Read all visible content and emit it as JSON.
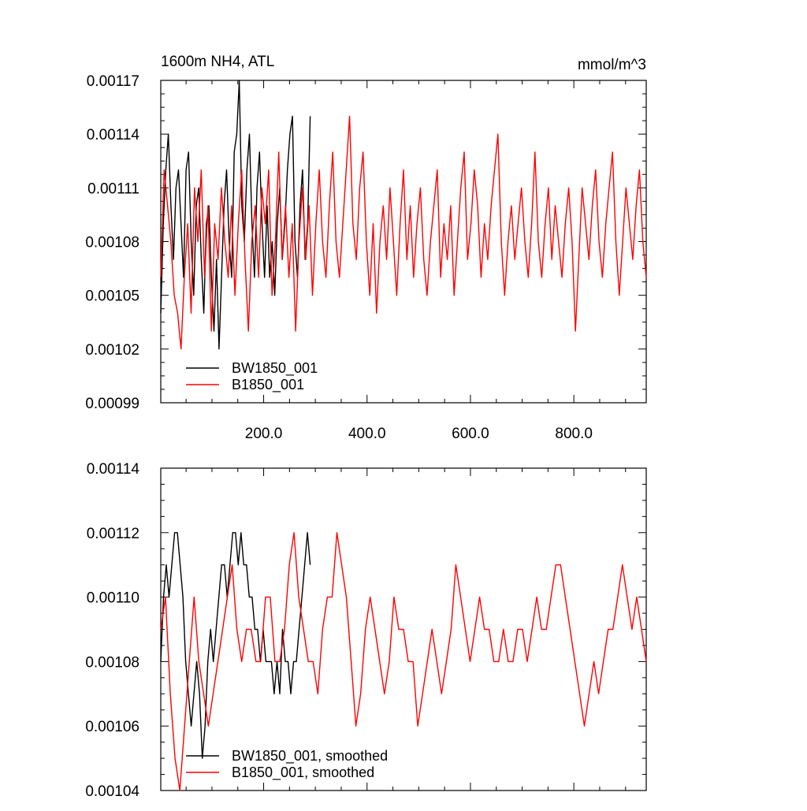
{
  "chart_data": [
    {
      "type": "line",
      "title": "1600m NH4, ATL",
      "units": "mmol/m^3",
      "xlabel": "",
      "ylabel": "",
      "xlim": [
        1,
        940
      ],
      "ylim": [
        0.00099,
        0.00117
      ],
      "x_ticks": [
        "200.0",
        "400.0",
        "600.0",
        "800.0"
      ],
      "x_tick_values": [
        200,
        400,
        600,
        800
      ],
      "y_ticks": [
        "0.00099",
        "0.00102",
        "0.00105",
        "0.00108",
        "0.00111",
        "0.00114",
        "0.00117"
      ],
      "y_tick_values": [
        0.00099,
        0.00102,
        0.00105,
        0.00108,
        0.00111,
        0.00114,
        0.00117
      ],
      "legend_position": "bottom-left",
      "grid": false,
      "series": [
        {
          "name": "BW1850_001",
          "color": "#000000",
          "x_range": [
            1,
            290
          ],
          "values": [
            0.00104,
            0.00109,
            0.00112,
            0.00114,
            0.0011,
            0.00107,
            0.00111,
            0.00112,
            0.00109,
            0.00106,
            0.00112,
            0.00113,
            0.00108,
            0.00105,
            0.0011,
            0.00111,
            0.00107,
            0.00104,
            0.00109,
            0.0011,
            0.00106,
            0.00103,
            0.00107,
            0.00102,
            0.00106,
            0.0011,
            0.00112,
            0.00108,
            0.00106,
            0.00113,
            0.00114,
            0.00117,
            0.0011,
            0.00108,
            0.00112,
            0.00114,
            0.00109,
            0.00106,
            0.00111,
            0.00113,
            0.00109,
            0.00106,
            0.0011,
            0.00106,
            0.00108,
            0.00105,
            0.00109,
            0.00111,
            0.00107,
            0.00109,
            0.00112,
            0.00114,
            0.00115,
            0.00108,
            0.00106,
            0.0011,
            0.00112,
            0.00107,
            0.00109,
            0.00115
          ]
        },
        {
          "name": "B1850_001",
          "color": "#ff0000",
          "x_range": [
            1,
            940
          ],
          "values": [
            0.00106,
            0.00112,
            0.0011,
            0.00108,
            0.00105,
            0.00104,
            0.00102,
            0.00106,
            0.00109,
            0.00104,
            0.00111,
            0.00108,
            0.00112,
            0.00106,
            0.0011,
            0.00103,
            0.00109,
            0.00107,
            0.00111,
            0.00108,
            0.00106,
            0.0011,
            0.00105,
            0.00109,
            0.00112,
            0.00107,
            0.00103,
            0.00108,
            0.0011,
            0.00106,
            0.00111,
            0.00109,
            0.00112,
            0.00105,
            0.00108,
            0.00113,
            0.00107,
            0.0011,
            0.00106,
            0.00109,
            0.00103,
            0.00108,
            0.00111,
            0.00107,
            0.0011,
            0.00105,
            0.00109,
            0.00112,
            0.00108,
            0.00106,
            0.0011,
            0.00113,
            0.00108,
            0.00106,
            0.00109,
            0.00112,
            0.00115,
            0.00109,
            0.00107,
            0.00111,
            0.00113,
            0.00108,
            0.00105,
            0.00109,
            0.00104,
            0.00108,
            0.0011,
            0.00107,
            0.00111,
            0.00108,
            0.00105,
            0.00109,
            0.00112,
            0.00107,
            0.0011,
            0.00106,
            0.00109,
            0.00111,
            0.00107,
            0.00105,
            0.00108,
            0.0011,
            0.00112,
            0.00106,
            0.00109,
            0.00107,
            0.0011,
            0.00105,
            0.00108,
            0.00111,
            0.00113,
            0.00107,
            0.00109,
            0.00112,
            0.0011,
            0.00106,
            0.00109,
            0.00107,
            0.0011,
            0.00112,
            0.00114,
            0.00108,
            0.00105,
            0.00108,
            0.0011,
            0.00107,
            0.00109,
            0.00111,
            0.00108,
            0.00106,
            0.00109,
            0.00113,
            0.00108,
            0.00106,
            0.00109,
            0.00111,
            0.00107,
            0.0011,
            0.00108,
            0.00106,
            0.00109,
            0.00111,
            0.00108,
            0.00103,
            0.00107,
            0.00111,
            0.00109,
            0.00107,
            0.0011,
            0.00112,
            0.00108,
            0.00106,
            0.00109,
            0.00111,
            0.00113,
            0.00108,
            0.00105,
            0.00108,
            0.00111,
            0.00109,
            0.00107,
            0.0011,
            0.00112,
            0.00108,
            0.00106
          ]
        }
      ]
    },
    {
      "type": "line",
      "title": "",
      "xlabel": "",
      "ylabel": "",
      "xlim": [
        1,
        940
      ],
      "ylim": [
        0.00104,
        0.00114
      ],
      "x_tick_values": [
        200,
        400,
        600,
        800
      ],
      "y_ticks": [
        "0.00104",
        "0.00106",
        "0.00108",
        "0.00110",
        "0.00112",
        "0.00114"
      ],
      "y_tick_values": [
        0.00104,
        0.00106,
        0.00108,
        0.0011,
        0.00112,
        0.00114
      ],
      "legend_position": "bottom-left",
      "grid": false,
      "series": [
        {
          "name": "BW1850_001, smoothed",
          "color": "#000000",
          "x_range": [
            1,
            290
          ],
          "values": [
            0.00108,
            0.0011,
            0.00111,
            0.0011,
            0.00111,
            0.00112,
            0.00112,
            0.00111,
            0.0011,
            0.00108,
            0.00107,
            0.00106,
            0.00107,
            0.00108,
            0.00107,
            0.00105,
            0.00106,
            0.00108,
            0.00109,
            0.00108,
            0.00109,
            0.0011,
            0.00111,
            0.00111,
            0.0011,
            0.00111,
            0.00112,
            0.00112,
            0.00111,
            0.00112,
            0.00111,
            0.00111,
            0.0011,
            0.0011,
            0.00109,
            0.00109,
            0.00108,
            0.00109,
            0.00108,
            0.00108,
            0.00108,
            0.00107,
            0.00108,
            0.00107,
            0.00109,
            0.00108,
            0.00108,
            0.00107,
            0.00108,
            0.00108,
            0.00109,
            0.0011,
            0.00111,
            0.00112,
            0.00111
          ]
        },
        {
          "name": "B1850_001, smoothed",
          "color": "#ff0000",
          "x_range": [
            1,
            940
          ],
          "values": [
            0.00109,
            0.0011,
            0.00107,
            0.00105,
            0.00104,
            0.00106,
            0.00108,
            0.0011,
            0.00108,
            0.00107,
            0.00106,
            0.00107,
            0.00108,
            0.00109,
            0.0011,
            0.00111,
            0.00109,
            0.00108,
            0.00109,
            0.00109,
            0.00108,
            0.00108,
            0.0011,
            0.0011,
            0.00108,
            0.00108,
            0.00109,
            0.00111,
            0.00112,
            0.0011,
            0.00109,
            0.00108,
            0.00108,
            0.00107,
            0.00109,
            0.0011,
            0.0011,
            0.00112,
            0.00111,
            0.0011,
            0.00108,
            0.00106,
            0.00107,
            0.00109,
            0.0011,
            0.00109,
            0.00108,
            0.00107,
            0.00108,
            0.0011,
            0.00109,
            0.00109,
            0.00108,
            0.00108,
            0.00106,
            0.00107,
            0.00108,
            0.00109,
            0.00108,
            0.00107,
            0.00108,
            0.00109,
            0.00111,
            0.0011,
            0.00109,
            0.00108,
            0.00109,
            0.0011,
            0.00109,
            0.00109,
            0.00108,
            0.00108,
            0.00109,
            0.00108,
            0.00108,
            0.00109,
            0.00109,
            0.00108,
            0.00109,
            0.0011,
            0.00109,
            0.00109,
            0.0011,
            0.00111,
            0.00111,
            0.0011,
            0.00109,
            0.00108,
            0.00107,
            0.00106,
            0.00107,
            0.00108,
            0.00107,
            0.00108,
            0.00109,
            0.00109,
            0.0011,
            0.00111,
            0.0011,
            0.00109,
            0.0011,
            0.00109,
            0.00108
          ]
        }
      ]
    }
  ]
}
